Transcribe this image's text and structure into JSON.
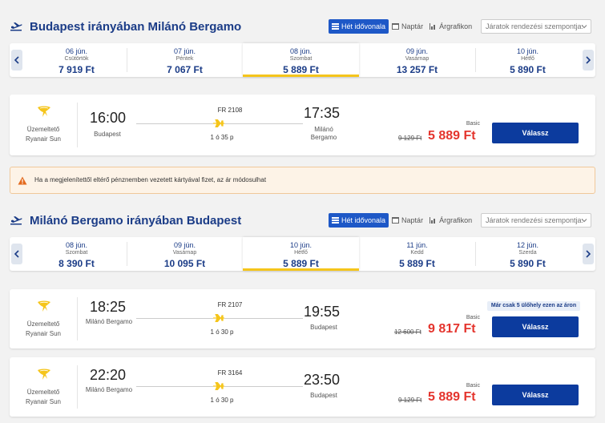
{
  "outbound": {
    "title": "Budapest irányában Milánó Bergamo",
    "view_tabs": [
      {
        "label": "Hét idővonala",
        "icon": "list-icon",
        "active": true
      },
      {
        "label": "Naptár",
        "icon": "calendar-icon",
        "active": false
      },
      {
        "label": "Árgrafikon",
        "icon": "bar-chart-icon",
        "active": false
      }
    ],
    "sort_placeholder": "Járatok rendezési szempontja:",
    "days": [
      {
        "date": "06 jún.",
        "weekday": "Csütörtök",
        "price": "7 919 Ft",
        "selected": false
      },
      {
        "date": "07 jún.",
        "weekday": "Péntek",
        "price": "7 067 Ft",
        "selected": false
      },
      {
        "date": "08 jún.",
        "weekday": "Szombat",
        "price": "5 889 Ft",
        "selected": true
      },
      {
        "date": "09 jún.",
        "weekday": "Vasárnap",
        "price": "13 257 Ft",
        "selected": false
      },
      {
        "date": "10 jún.",
        "weekday": "Hétfő",
        "price": "5 890 Ft",
        "selected": false
      }
    ],
    "flights": [
      {
        "operator_label": "Üzemeltető",
        "operator": "Ryanair Sun",
        "depart_time": "16:00",
        "depart_city": "Budapest",
        "flight_no": "FR 2108",
        "duration": "1 ó 35 p",
        "arrive_time": "17:35",
        "arrive_city": "Milánó Bergamo",
        "fare": "Basic",
        "old_price": "9 129 Ft",
        "price": "5 889 Ft",
        "button": "Válassz",
        "badge": ""
      }
    ]
  },
  "warning": {
    "text": "Ha a megjelenítettől eltérő pénznemben vezetett kártyával fizet, az ár módosulhat"
  },
  "inbound": {
    "title": "Milánó Bergamo irányában Budapest",
    "view_tabs": [
      {
        "label": "Hét idővonala",
        "icon": "list-icon",
        "active": true
      },
      {
        "label": "Naptár",
        "icon": "calendar-icon",
        "active": false
      },
      {
        "label": "Árgrafikon",
        "icon": "bar-chart-icon",
        "active": false
      }
    ],
    "sort_placeholder": "Járatok rendezési szempontja:",
    "days": [
      {
        "date": "08 jún.",
        "weekday": "Szombat",
        "price": "8 390 Ft",
        "selected": false
      },
      {
        "date": "09 jún.",
        "weekday": "Vasárnap",
        "price": "10 095 Ft",
        "selected": false
      },
      {
        "date": "10 jún.",
        "weekday": "Hétfő",
        "price": "5 889 Ft",
        "selected": true
      },
      {
        "date": "11 jún.",
        "weekday": "Kedd",
        "price": "5 889 Ft",
        "selected": false
      },
      {
        "date": "12 jún.",
        "weekday": "Szerda",
        "price": "5 890 Ft",
        "selected": false
      }
    ],
    "flights": [
      {
        "operator_label": "Üzemeltető",
        "operator": "Ryanair Sun",
        "depart_time": "18:25",
        "depart_city": "Milánó Bergamo",
        "flight_no": "FR 2107",
        "duration": "1 ó 30 p",
        "arrive_time": "19:55",
        "arrive_city": "Budapest",
        "fare": "Basic",
        "old_price": "12 600 Ft",
        "price": "9 817 Ft",
        "button": "Válassz",
        "badge": "Már csak 5 ülőhely ezen az áron"
      },
      {
        "operator_label": "Üzemeltető",
        "operator": "Ryanair Sun",
        "depart_time": "22:20",
        "depart_city": "Milánó Bergamo",
        "flight_no": "FR 3164",
        "duration": "1 ó 30 p",
        "arrive_time": "23:50",
        "arrive_city": "Budapest",
        "fare": "Basic",
        "old_price": "9 129 Ft",
        "price": "5 889 Ft",
        "button": "Válassz",
        "badge": ""
      }
    ]
  },
  "colors": {
    "brand_blue": "#1b3c87",
    "button_blue": "#0c3b9e",
    "price_red": "#e4342d",
    "accent_yellow": "#f5c51b"
  }
}
